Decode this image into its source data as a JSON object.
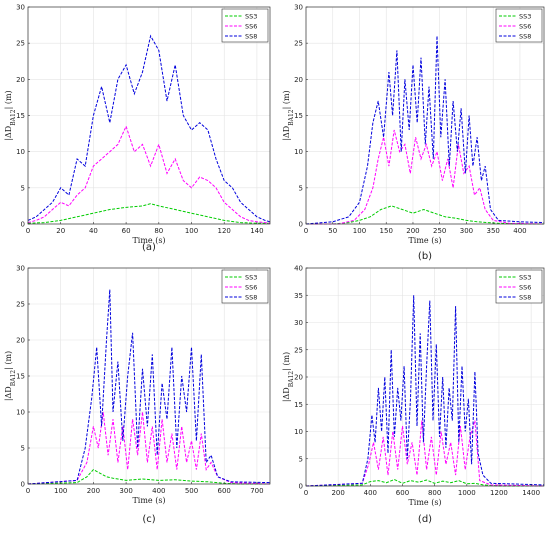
{
  "chart_data": [
    {
      "type": "line",
      "caption": "(a)",
      "xlabel": "Time (s)",
      "ylabel": "|ΔD_{BA12}| (m)",
      "xlim": [
        0,
        148
      ],
      "ylim": [
        0,
        30
      ],
      "xticks": [
        0,
        20,
        40,
        60,
        80,
        100,
        120,
        140
      ],
      "yticks": [
        0,
        5,
        10,
        15,
        20,
        25,
        30
      ],
      "grid": true,
      "legend_position": "top-right",
      "series": [
        {
          "name": "SS3",
          "color": "#00cc00",
          "x": [
            0,
            10,
            20,
            30,
            40,
            50,
            60,
            70,
            75,
            80,
            90,
            100,
            110,
            120,
            130,
            140,
            148
          ],
          "y": [
            0.1,
            0.2,
            0.5,
            1,
            1.5,
            2,
            2.3,
            2.5,
            2.8,
            2.5,
            2,
            1.5,
            1,
            0.5,
            0.2,
            0.1,
            0.1
          ]
        },
        {
          "name": "SS6",
          "color": "#ff00ff",
          "x": [
            0,
            5,
            10,
            15,
            20,
            25,
            30,
            35,
            40,
            45,
            50,
            55,
            60,
            65,
            70,
            75,
            80,
            85,
            90,
            95,
            100,
            105,
            110,
            115,
            120,
            125,
            130,
            135,
            140,
            145,
            148
          ],
          "y": [
            0.2,
            0.5,
            1,
            2,
            3,
            2.5,
            4,
            5,
            8,
            9,
            10,
            11,
            13.5,
            10,
            11,
            8,
            11,
            7,
            9,
            6,
            5,
            6.5,
            6,
            5,
            3,
            2,
            1,
            0.5,
            0.3,
            0.2,
            0.1
          ]
        },
        {
          "name": "SS8",
          "color": "#0000dd",
          "x": [
            0,
            5,
            10,
            15,
            20,
            25,
            30,
            35,
            40,
            45,
            50,
            55,
            60,
            65,
            70,
            75,
            80,
            85,
            90,
            95,
            100,
            105,
            110,
            115,
            120,
            125,
            130,
            135,
            140,
            145,
            148
          ],
          "y": [
            0.5,
            1,
            2,
            3,
            5,
            4,
            9,
            8,
            15,
            19,
            14,
            20,
            22,
            18,
            21,
            26,
            24,
            17,
            22,
            15,
            13,
            14,
            13,
            9,
            6,
            5,
            3,
            2,
            1,
            0.5,
            0.3
          ]
        }
      ]
    },
    {
      "type": "line",
      "caption": "(b)",
      "xlabel": "Time (s)",
      "ylabel": "|ΔD_{BA12}| (m)",
      "xlim": [
        0,
        445
      ],
      "ylim": [
        0,
        30
      ],
      "xticks": [
        0,
        50,
        100,
        150,
        200,
        250,
        300,
        350,
        400
      ],
      "yticks": [
        0,
        5,
        10,
        15,
        20,
        25,
        30
      ],
      "grid": true,
      "legend_position": "top-right",
      "series": [
        {
          "name": "SS3",
          "color": "#00cc00",
          "x": [
            0,
            50,
            80,
            100,
            120,
            140,
            160,
            180,
            200,
            220,
            240,
            260,
            280,
            300,
            320,
            340,
            360,
            400,
            445
          ],
          "y": [
            0,
            0,
            0.2,
            0.5,
            1,
            2,
            2.5,
            2,
            1.5,
            2,
            1.5,
            1,
            0.8,
            0.5,
            0.3,
            0.2,
            0.1,
            0,
            0
          ]
        },
        {
          "name": "SS6",
          "color": "#ff00ff",
          "x": [
            0,
            60,
            90,
            110,
            125,
            135,
            145,
            155,
            165,
            175,
            185,
            195,
            205,
            215,
            225,
            235,
            245,
            255,
            265,
            275,
            285,
            295,
            305,
            315,
            325,
            335,
            350,
            380,
            445
          ],
          "y": [
            0,
            0,
            0.5,
            2,
            5,
            9,
            12,
            8,
            13,
            10,
            11,
            7,
            12,
            9,
            11,
            8,
            10,
            6,
            9,
            5,
            11,
            7,
            8,
            4,
            5,
            2,
            0.5,
            0.1,
            0
          ]
        },
        {
          "name": "SS8",
          "color": "#0000dd",
          "x": [
            0,
            50,
            80,
            100,
            115,
            125,
            135,
            145,
            155,
            162,
            170,
            178,
            185,
            193,
            200,
            208,
            215,
            223,
            230,
            238,
            245,
            252,
            260,
            268,
            275,
            283,
            290,
            298,
            305,
            312,
            320,
            328,
            335,
            345,
            360,
            400,
            445
          ],
          "y": [
            0,
            0.3,
            1,
            3,
            8,
            14,
            17,
            12,
            21,
            15,
            24,
            10,
            20,
            13,
            22,
            14,
            23,
            11,
            19,
            9,
            26,
            12,
            20,
            8,
            17,
            10,
            16,
            7,
            15,
            8,
            12,
            6,
            8,
            2,
            0.5,
            0.3,
            0.2
          ]
        }
      ]
    },
    {
      "type": "line",
      "caption": "(c)",
      "xlabel": "Time (s)",
      "ylabel": "|ΔD_{BA12}| (m)",
      "xlim": [
        0,
        740
      ],
      "ylim": [
        0,
        30
      ],
      "xticks": [
        0,
        100,
        200,
        300,
        400,
        500,
        600,
        700
      ],
      "yticks": [
        0,
        5,
        10,
        15,
        20,
        25,
        30
      ],
      "grid": true,
      "legend_position": "top-right",
      "series": [
        {
          "name": "SS3",
          "color": "#00cc00",
          "x": [
            0,
            150,
            180,
            200,
            220,
            240,
            260,
            300,
            350,
            400,
            450,
            500,
            550,
            600,
            650,
            740
          ],
          "y": [
            0,
            0.2,
            1,
            2,
            1.5,
            1,
            0.8,
            0.5,
            0.7,
            0.5,
            0.6,
            0.4,
            0.3,
            0.1,
            0,
            0
          ]
        },
        {
          "name": "SS6",
          "color": "#ff00ff",
          "x": [
            0,
            150,
            180,
            200,
            215,
            230,
            245,
            260,
            275,
            290,
            305,
            320,
            335,
            350,
            365,
            380,
            395,
            410,
            425,
            440,
            455,
            470,
            485,
            500,
            515,
            530,
            545,
            560,
            580,
            620,
            740
          ],
          "y": [
            0,
            0.5,
            3,
            8,
            5,
            10,
            4,
            9,
            3,
            8,
            2,
            9,
            4,
            10,
            3,
            8,
            2,
            9,
            3,
            7,
            2,
            8,
            3,
            6,
            2,
            7,
            2,
            3,
            1,
            0.2,
            0
          ]
        },
        {
          "name": "SS8",
          "color": "#0000dd",
          "x": [
            0,
            150,
            175,
            195,
            210,
            225,
            240,
            250,
            260,
            275,
            290,
            305,
            320,
            335,
            350,
            365,
            380,
            395,
            410,
            425,
            440,
            455,
            470,
            485,
            500,
            515,
            530,
            545,
            560,
            580,
            620,
            740
          ],
          "y": [
            0,
            0.5,
            5,
            12,
            19,
            8,
            20,
            27,
            10,
            17,
            6,
            15,
            21,
            5,
            16,
            8,
            18,
            4,
            14,
            9,
            19,
            5,
            15,
            10,
            19,
            6,
            18,
            3,
            4,
            1,
            0.3,
            0.2
          ]
        }
      ]
    },
    {
      "type": "line",
      "caption": "(d)",
      "xlabel": "Time (s)",
      "ylabel": "|ΔD_{BA12}| (m)",
      "xlim": [
        0,
        1480
      ],
      "ylim": [
        0,
        40
      ],
      "xticks": [
        0,
        200,
        400,
        600,
        800,
        1000,
        1200,
        1400
      ],
      "yticks": [
        0,
        5,
        10,
        15,
        20,
        25,
        30,
        35,
        40
      ],
      "grid": true,
      "legend_position": "top-right",
      "series": [
        {
          "name": "SS3",
          "color": "#00cc00",
          "x": [
            0,
            350,
            400,
            450,
            500,
            550,
            600,
            650,
            700,
            750,
            800,
            850,
            900,
            950,
            1000,
            1050,
            1100,
            1200,
            1480
          ],
          "y": [
            0,
            0.2,
            0.8,
            1,
            0.6,
            1.2,
            0.5,
            1,
            0.7,
            1.1,
            0.5,
            0.9,
            0.6,
            1,
            0.4,
            0.5,
            0.2,
            0,
            0
          ]
        },
        {
          "name": "SS6",
          "color": "#ff00ff",
          "x": [
            0,
            350,
            390,
            420,
            450,
            480,
            510,
            540,
            570,
            600,
            630,
            660,
            690,
            720,
            750,
            780,
            810,
            840,
            870,
            900,
            930,
            960,
            990,
            1020,
            1050,
            1080,
            1150,
            1480
          ],
          "y": [
            0,
            0.5,
            4,
            8,
            3,
            9,
            2,
            10,
            3,
            11,
            4,
            8,
            2,
            12,
            3,
            9,
            2,
            10,
            4,
            8,
            2,
            11,
            3,
            9,
            12,
            1,
            0.2,
            0
          ]
        },
        {
          "name": "SS8",
          "color": "#0000dd",
          "x": [
            0,
            350,
            385,
            410,
            430,
            450,
            470,
            490,
            510,
            530,
            550,
            570,
            590,
            610,
            630,
            650,
            670,
            690,
            710,
            730,
            750,
            770,
            790,
            810,
            830,
            850,
            870,
            890,
            910,
            930,
            950,
            970,
            990,
            1010,
            1030,
            1050,
            1070,
            1100,
            1150,
            1480
          ],
          "y": [
            0,
            0.5,
            5,
            13,
            8,
            18,
            10,
            20,
            6,
            25,
            9,
            18,
            12,
            22,
            5,
            16,
            35,
            11,
            28,
            8,
            22,
            34,
            12,
            26,
            9,
            20,
            7,
            18,
            12,
            33,
            8,
            22,
            10,
            16,
            4,
            21,
            6,
            2,
            0.5,
            0.2
          ]
        }
      ]
    }
  ]
}
